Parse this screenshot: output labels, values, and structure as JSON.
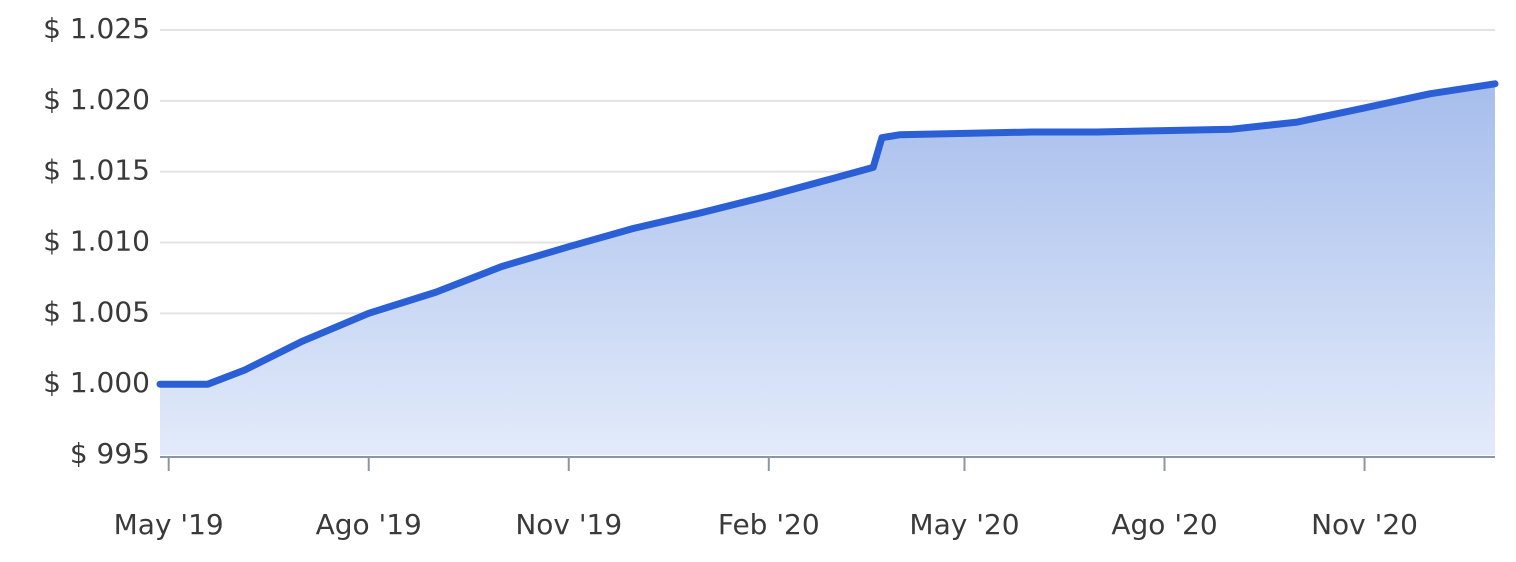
{
  "chart_data": {
    "type": "area",
    "title": "",
    "xlabel": "",
    "ylabel": "",
    "ylim": [
      995,
      1025
    ],
    "y_ticks": [
      995,
      1000,
      1005,
      1010,
      1015,
      1020,
      1025
    ],
    "y_tick_labels": [
      "$ 995",
      "$ 1.000",
      "$ 1.005",
      "$ 1.010",
      "$ 1.015",
      "$ 1.020",
      "$ 1.025"
    ],
    "x_range": [
      "2019-04-27",
      "2020-12-31"
    ],
    "x_ticks": [
      "2019-05-01",
      "2019-08-01",
      "2019-11-01",
      "2020-02-01",
      "2020-05-01",
      "2020-08-01",
      "2020-11-01"
    ],
    "x_tick_labels": [
      "May '19",
      "Ago '19",
      "Nov '19",
      "Feb '20",
      "May '20",
      "Ago '20",
      "Nov '20"
    ],
    "grid": true,
    "colors": {
      "line": "#2a5fd6",
      "fill_top": "#a6bdec",
      "fill_bottom": "#e3ebfa",
      "grid": "#e3e3e3",
      "axis": "#8a96a3"
    },
    "series": [
      {
        "x": [
          "2019-04-27",
          "2019-05-19",
          "2019-06-05",
          "2019-07-01",
          "2019-08-01",
          "2019-09-01",
          "2019-10-01",
          "2019-11-01",
          "2019-12-01",
          "2020-01-01",
          "2020-02-01",
          "2020-03-01",
          "2020-03-20",
          "2020-03-24",
          "2020-04-01",
          "2020-05-01",
          "2020-06-01",
          "2020-07-01",
          "2020-08-01",
          "2020-09-01",
          "2020-10-01",
          "2020-11-01",
          "2020-12-01",
          "2020-12-31"
        ],
        "values": [
          1000.0,
          1000.0,
          1001.0,
          1003.0,
          1005.0,
          1006.5,
          1008.3,
          1009.7,
          1011.0,
          1012.1,
          1013.3,
          1014.5,
          1015.3,
          1017.4,
          1017.6,
          1017.7,
          1017.8,
          1017.8,
          1017.9,
          1018.0,
          1018.5,
          1019.5,
          1020.5,
          1021.2
        ]
      }
    ]
  }
}
